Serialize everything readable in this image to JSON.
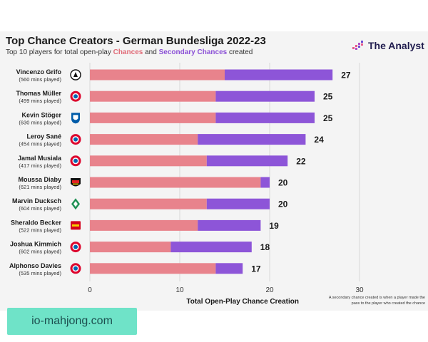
{
  "header": {
    "title": "Top Chance Creators - German Bundesliga 2022-23",
    "subtitle_prefix": "Top 10 players for total open-play ",
    "subtitle_chances": "Chances",
    "subtitle_and": " and ",
    "subtitle_secondary": "Secondary Chances",
    "subtitle_suffix": " created"
  },
  "brand": {
    "name": "The Analyst"
  },
  "note": "A secondary chance created is when a player made the pass to the player who created the chance",
  "watermark": "io-mahjong.com",
  "colors": {
    "chances": "#e8838c",
    "secondary": "#8d55d8",
    "background": "#f4f4f4"
  },
  "chart_data": {
    "type": "bar",
    "orientation": "horizontal",
    "stacked": true,
    "xlabel": "Total Open-Play Chance Creation",
    "xlim": [
      0,
      30
    ],
    "xticks": [
      0,
      10,
      20,
      30
    ],
    "categories": [
      {
        "name": "Vincenzo Grifo",
        "mins": "(560 mins played)",
        "club_icon": "freiburg-crest-icon"
      },
      {
        "name": "Thomas Müller",
        "mins": "(499 mins played)",
        "club_icon": "bayern-crest-icon"
      },
      {
        "name": "Kevin Stöger",
        "mins": "(630 mins played)",
        "club_icon": "bochum-crest-icon"
      },
      {
        "name": "Leroy Sané",
        "mins": "(454 mins played)",
        "club_icon": "bayern-crest-icon"
      },
      {
        "name": "Jamal Musiala",
        "mins": "(417 mins played)",
        "club_icon": "bayern-crest-icon"
      },
      {
        "name": "Moussa Diaby",
        "mins": "(621 mins played)",
        "club_icon": "leverkusen-crest-icon"
      },
      {
        "name": "Marvin Ducksch",
        "mins": "(604 mins played)",
        "club_icon": "werder-crest-icon"
      },
      {
        "name": "Sheraldo Becker",
        "mins": "(522 mins played)",
        "club_icon": "union-crest-icon"
      },
      {
        "name": "Joshua Kimmich",
        "mins": "(602 mins played)",
        "club_icon": "bayern-crest-icon"
      },
      {
        "name": "Alphonso Davies",
        "mins": "(535 mins played)",
        "club_icon": "bayern-crest-icon"
      }
    ],
    "series": [
      {
        "name": "Chances",
        "values": [
          15,
          14,
          14,
          12,
          13,
          19,
          13,
          12,
          9,
          14
        ]
      },
      {
        "name": "Secondary Chances",
        "values": [
          12,
          11,
          11,
          12,
          9,
          1,
          7,
          7,
          9,
          3
        ]
      }
    ],
    "totals": [
      27,
      25,
      25,
      24,
      22,
      20,
      20,
      19,
      18,
      17
    ]
  }
}
